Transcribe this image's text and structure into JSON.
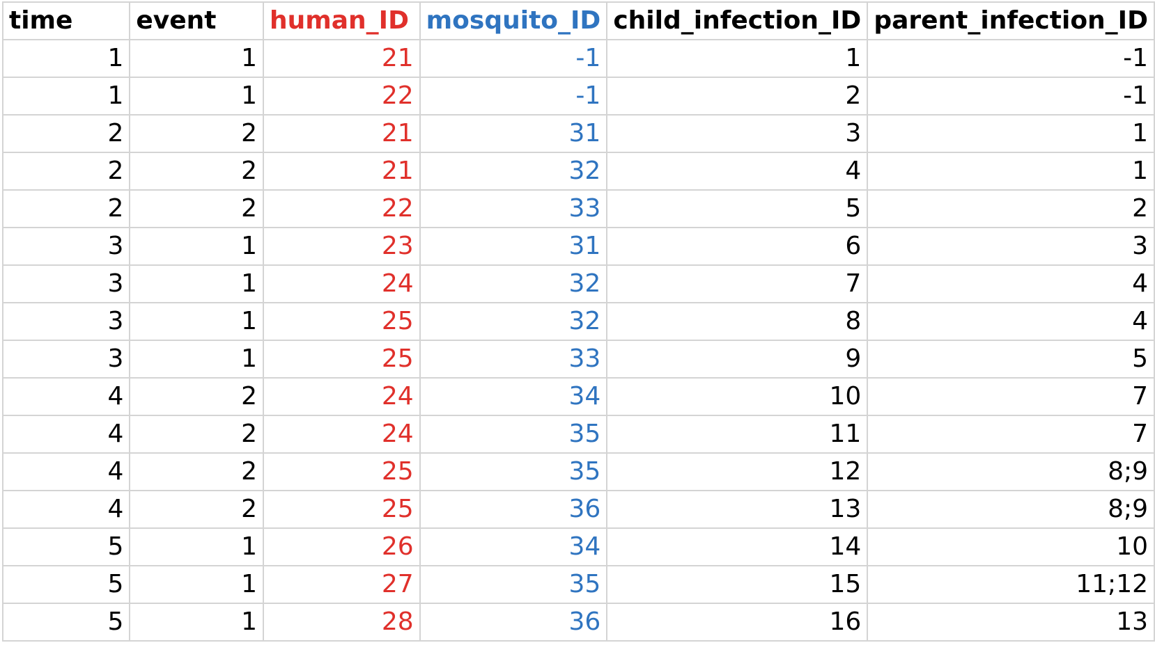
{
  "colors": {
    "default": "#000000",
    "human_ID": "#e0302b",
    "mosquito_ID": "#2f74c0",
    "gridline": "#d4d4d4"
  },
  "columns": [
    "time",
    "event",
    "human_ID",
    "mosquito_ID",
    "child_infection_ID",
    "parent_infection_ID"
  ],
  "rows": [
    [
      "1",
      "1",
      "21",
      "-1",
      "1",
      "-1"
    ],
    [
      "1",
      "1",
      "22",
      "-1",
      "2",
      "-1"
    ],
    [
      "2",
      "2",
      "21",
      "31",
      "3",
      "1"
    ],
    [
      "2",
      "2",
      "21",
      "32",
      "4",
      "1"
    ],
    [
      "2",
      "2",
      "22",
      "33",
      "5",
      "2"
    ],
    [
      "3",
      "1",
      "23",
      "31",
      "6",
      "3"
    ],
    [
      "3",
      "1",
      "24",
      "32",
      "7",
      "4"
    ],
    [
      "3",
      "1",
      "25",
      "32",
      "8",
      "4"
    ],
    [
      "3",
      "1",
      "25",
      "33",
      "9",
      "5"
    ],
    [
      "4",
      "2",
      "24",
      "34",
      "10",
      "7"
    ],
    [
      "4",
      "2",
      "24",
      "35",
      "11",
      "7"
    ],
    [
      "4",
      "2",
      "25",
      "35",
      "12",
      "8;9"
    ],
    [
      "4",
      "2",
      "25",
      "36",
      "13",
      "8;9"
    ],
    [
      "5",
      "1",
      "26",
      "34",
      "14",
      "10"
    ],
    [
      "5",
      "1",
      "27",
      "35",
      "15",
      "11;12"
    ],
    [
      "5",
      "1",
      "28",
      "36",
      "16",
      "13"
    ]
  ]
}
